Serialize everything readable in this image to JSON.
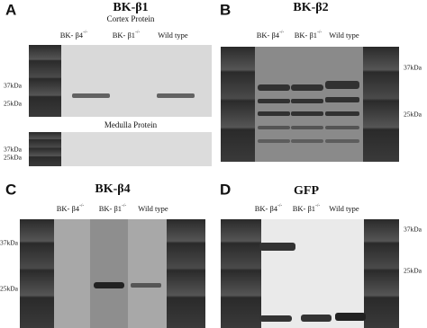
{
  "panels": [
    {
      "letter": "A",
      "title": "BK-β1",
      "subtitle": "Cortex Protein",
      "lanes": [
        {
          "label": "BK- β4",
          "sup": "-/-"
        },
        {
          "label": "BK- β1",
          "sup": "-/-"
        },
        {
          "label": "Wild type"
        }
      ],
      "markers": [
        "37kDa",
        "25kDa"
      ],
      "subtitle2": "Medulla Protein",
      "markers2": [
        "37kDa",
        "25kDa"
      ]
    },
    {
      "letter": "B",
      "title": "BK-β2",
      "lanes": [
        {
          "label": "BK- β4",
          "sup": "-/-"
        },
        {
          "label": "BK- β1",
          "sup": "-/-"
        },
        {
          "label": "Wild type"
        }
      ],
      "markers": [
        "37kDa",
        "25kDa"
      ]
    },
    {
      "letter": "C",
      "title": "BK-β4",
      "lanes": [
        {
          "label": "BK- β4",
          "sup": "-/-"
        },
        {
          "label": "BK- β1",
          "sup": "-/-"
        },
        {
          "label": "Wild type"
        }
      ],
      "markers": [
        "37kDa",
        "25kDa"
      ]
    },
    {
      "letter": "D",
      "title": "GFP",
      "lanes": [
        {
          "label": "BK- β4",
          "sup": "-/-"
        },
        {
          "label": "BK- β1",
          "sup": "-/-"
        },
        {
          "label": "Wild type"
        }
      ],
      "markers": [
        "37kDa",
        "25kDa"
      ]
    }
  ]
}
